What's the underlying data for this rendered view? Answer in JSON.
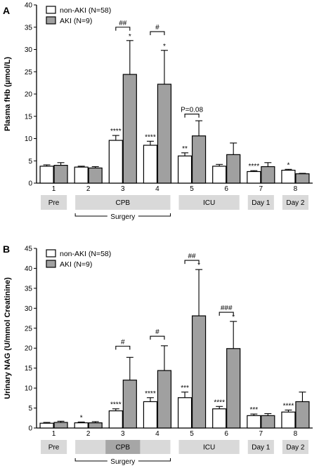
{
  "colors": {
    "non_aki": "#ffffff",
    "aki": "#a0a0a0",
    "phase_box": "#d9d9d9",
    "phase_box_dark": "#a6a6a6"
  },
  "chart_data": [
    {
      "type": "bar",
      "panel": "A",
      "ylabel": "Plasma fHb (µmol/L)",
      "ylim": [
        0,
        40
      ],
      "yticks": [
        0,
        5,
        10,
        15,
        20,
        25,
        30,
        35,
        40
      ],
      "categories": [
        "1",
        "2",
        "3",
        "4",
        "5",
        "6",
        "7",
        "8"
      ],
      "legend": "top-left",
      "series": [
        {
          "name": "non-AKI (N=58)",
          "values": [
            3.8,
            3.6,
            9.6,
            8.5,
            6.1,
            3.8,
            2.6,
            2.9
          ],
          "errors": [
            0.3,
            0.2,
            1.1,
            0.9,
            0.7,
            0.4,
            0.2,
            0.2
          ]
        },
        {
          "name": "AKI (N=9)",
          "values": [
            4.0,
            3.4,
            24.4,
            22.2,
            10.6,
            6.4,
            3.7,
            2.1
          ],
          "errors": [
            0.6,
            0.3,
            7.6,
            7.6,
            3.4,
            2.6,
            0.9,
            0.1
          ]
        }
      ],
      "annotations": [
        {
          "i": 2,
          "s": 0,
          "text": "****"
        },
        {
          "i": 3,
          "s": 0,
          "text": "****"
        },
        {
          "i": 4,
          "s": 0,
          "text": "**"
        },
        {
          "i": 6,
          "s": 0,
          "text": "****"
        },
        {
          "i": 7,
          "s": 0,
          "text": "*"
        },
        {
          "i": 2,
          "s": 1,
          "text": "*"
        },
        {
          "i": 3,
          "s": 1,
          "text": "*"
        }
      ],
      "brackets": [
        {
          "i": 2,
          "y": 35,
          "text": "##"
        },
        {
          "i": 3,
          "y": 34,
          "text": "#"
        },
        {
          "i": 4,
          "y": 15.5,
          "text": "P=0.08"
        }
      ],
      "phases": [
        {
          "label": "Pre",
          "from": 0,
          "to": 0
        },
        {
          "label": "CPB",
          "from": 1,
          "to": 3
        },
        {
          "label": "ICU",
          "from": 4,
          "to": 5
        },
        {
          "label": "Day 1",
          "from": 6,
          "to": 6
        },
        {
          "label": "Day 2",
          "from": 7,
          "to": 7
        }
      ],
      "surgery_label": "Surgery"
    },
    {
      "type": "bar",
      "panel": "B",
      "ylabel": "Urinary NAG (U/mmol Creatinine)",
      "ylim": [
        0,
        45
      ],
      "yticks": [
        0,
        5,
        10,
        15,
        20,
        25,
        30,
        35,
        40,
        45
      ],
      "categories": [
        "1",
        "2",
        "3",
        "4",
        "5",
        "6",
        "7",
        "8"
      ],
      "legend": "top-left",
      "series": [
        {
          "name": "non-AKI (N=58)",
          "values": [
            1.2,
            1.3,
            4.3,
            6.6,
            7.6,
            4.8,
            3.1,
            4.0
          ],
          "errors": [
            0.2,
            0.2,
            0.5,
            1.0,
            1.4,
            0.6,
            0.4,
            0.5
          ]
        },
        {
          "name": "AKI (N=9)",
          "values": [
            1.4,
            1.3,
            12.0,
            14.4,
            28.1,
            19.9,
            3.1,
            6.6
          ],
          "errors": [
            0.3,
            0.3,
            5.7,
            6.2,
            11.6,
            6.8,
            0.5,
            2.4
          ]
        }
      ],
      "annotations": [
        {
          "i": 1,
          "s": 0,
          "text": "*"
        },
        {
          "i": 2,
          "s": 0,
          "text": "****"
        },
        {
          "i": 3,
          "s": 0,
          "text": "****"
        },
        {
          "i": 4,
          "s": 0,
          "text": "***"
        },
        {
          "i": 5,
          "s": 0,
          "text": "****"
        },
        {
          "i": 6,
          "s": 0,
          "text": "***"
        },
        {
          "i": 7,
          "s": 0,
          "text": "****"
        },
        {
          "i": 4,
          "s": 1,
          "text": "*"
        },
        {
          "i": 5,
          "s": 1,
          "text": "*"
        }
      ],
      "brackets": [
        {
          "i": 2,
          "y": 20.5,
          "text": "#"
        },
        {
          "i": 3,
          "y": 23,
          "text": "#"
        },
        {
          "i": 4,
          "y": 42,
          "text": "##"
        },
        {
          "i": 5,
          "y": 29,
          "text": "###"
        }
      ],
      "phases": [
        {
          "label": "Pre",
          "from": 0,
          "to": 0
        },
        {
          "label": "CPB",
          "from": 1,
          "to": 3,
          "highlight_index": 2
        },
        {
          "label": "ICU",
          "from": 4,
          "to": 5
        },
        {
          "label": "Day 1",
          "from": 6,
          "to": 6
        },
        {
          "label": "Day 2",
          "from": 7,
          "to": 7
        }
      ],
      "surgery_label": "Surgery"
    }
  ]
}
